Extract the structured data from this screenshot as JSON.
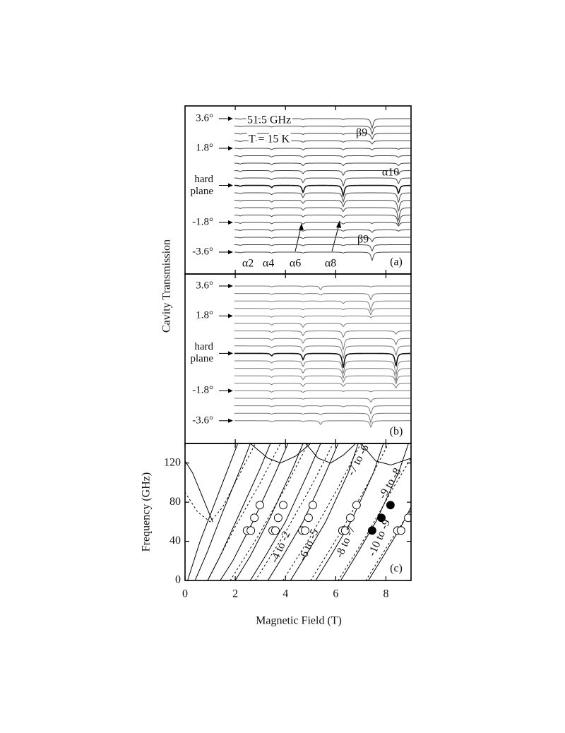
{
  "chart_data": [
    {
      "type": "spectra",
      "panel_label": "(a)",
      "ylabel": "Cavity Transmission",
      "xlim": [
        0,
        9
      ],
      "xticks": [
        2,
        4,
        6,
        8
      ],
      "angle_labels": [
        "3.6°",
        "1.8°",
        "hard plane",
        "-1.8°",
        "-3.6°"
      ],
      "annotations": [
        "51.5 GHz",
        "T = 15 K",
        "β9",
        "α10",
        "β9",
        "α2",
        "α4",
        "α6",
        "α8"
      ],
      "color": "#444",
      "dip_fields": [
        2.2,
        3.45,
        4.7,
        6.3,
        7.45,
        8.5
      ],
      "depths": [
        [
          0.2,
          0.3,
          0.3,
          0.3,
          3.0,
          0
        ],
        [
          0.2,
          0.3,
          0.3,
          0.3,
          2.5,
          0
        ],
        [
          0.2,
          0.3,
          0.3,
          0.3,
          1.8,
          0
        ],
        [
          0.2,
          0.3,
          0.4,
          0.4,
          1.0,
          0
        ],
        [
          0.2,
          0.4,
          0.5,
          0.5,
          0.5,
          0.3
        ],
        [
          0.3,
          0.4,
          0.6,
          0.6,
          0.3,
          0.5
        ],
        [
          0.3,
          0.5,
          0.8,
          0.8,
          0,
          0.8
        ],
        [
          0.3,
          0.5,
          1.0,
          1.5,
          0,
          1.2
        ],
        [
          0.3,
          0.6,
          1.5,
          2.5,
          0,
          1.8
        ],
        [
          0.3,
          0.7,
          2.2,
          3.2,
          0,
          2.5
        ],
        [
          0.3,
          0.6,
          1.5,
          2.8,
          0,
          3.0
        ],
        [
          0.3,
          0.6,
          1.0,
          2.0,
          0,
          3.5
        ],
        [
          0.3,
          0.5,
          0.8,
          1.2,
          0,
          4.0
        ],
        [
          0.3,
          0.5,
          0.6,
          0.8,
          0,
          3.0
        ],
        [
          0.3,
          0.4,
          0.5,
          0.5,
          0.3,
          1.2
        ],
        [
          0.2,
          0.4,
          0.4,
          0.4,
          0.8,
          0.4
        ],
        [
          0.2,
          0.3,
          0.4,
          0.3,
          1.4,
          0
        ],
        [
          0.2,
          0.3,
          0.3,
          0.3,
          2.0,
          0
        ],
        [
          0.2,
          0.3,
          0.3,
          0.3,
          2.6,
          0
        ]
      ]
    },
    {
      "type": "spectra",
      "panel_label": "(b)",
      "xlim": [
        0,
        9
      ],
      "xticks": [
        2,
        4,
        6,
        8
      ],
      "angle_labels": [
        "3.6°",
        "1.8°",
        "hard plane",
        "-1.8°",
        "-3.6°"
      ],
      "color": "#777",
      "dip_fields": [
        3.45,
        4.7,
        5.4,
        6.3,
        7.4,
        8.4
      ],
      "depths": [
        [
          0.3,
          0.3,
          1.2,
          0,
          0.3,
          0
        ],
        [
          0.3,
          0.3,
          0.5,
          0,
          2.0,
          0
        ],
        [
          0.3,
          0.3,
          0.2,
          0.8,
          3.0,
          0
        ],
        [
          0.4,
          0.4,
          0,
          0.4,
          2.0,
          0
        ],
        [
          0.4,
          0.5,
          0,
          0.2,
          0.5,
          0
        ],
        [
          0.5,
          1.2,
          0,
          1.0,
          0,
          0
        ],
        [
          0.5,
          1.5,
          0,
          2.0,
          0,
          1.0
        ],
        [
          0.6,
          1.5,
          0,
          3.5,
          0,
          2.0
        ],
        [
          0.7,
          1.8,
          0,
          4.0,
          0,
          3.0
        ],
        [
          0.8,
          2.0,
          0,
          4.5,
          0,
          4.0
        ],
        [
          0.7,
          1.8,
          0,
          4.0,
          0,
          4.5
        ],
        [
          0.6,
          1.5,
          0,
          3.0,
          0,
          4.0
        ],
        [
          0.5,
          1.2,
          0,
          2.0,
          0,
          2.5
        ],
        [
          0.4,
          1.0,
          0,
          1.0,
          0,
          1.5
        ],
        [
          0.4,
          0.5,
          0,
          0.2,
          0.3,
          0
        ],
        [
          0.3,
          0.3,
          0,
          0,
          1.2,
          0
        ],
        [
          0.3,
          0.3,
          0.2,
          0.3,
          2.5,
          0
        ],
        [
          0.3,
          0.3,
          0.5,
          0,
          3.0,
          0
        ],
        [
          0.3,
          0.3,
          1.2,
          0,
          2.0,
          0
        ]
      ]
    },
    {
      "type": "line",
      "panel_label": "(c)",
      "xlabel": "Magnetic Field (T)",
      "ylabel": "Frequency (GHz)",
      "xlim": [
        0,
        9
      ],
      "xticks": [
        0,
        2,
        4,
        6,
        8
      ],
      "ylim": [
        0,
        140
      ],
      "yticks": [
        0,
        40,
        80,
        120
      ],
      "annotations": [
        "-4 to -2",
        "-6 to -5",
        "-8 to -7",
        "-10 to -9",
        "-9 to -8",
        "-7 to -6"
      ],
      "color": "#000",
      "curves": [
        {
          "style": "solid",
          "x": [
            0.1,
            0.6,
            1.2,
            1.8,
            2.1
          ],
          "y": [
            0,
            40,
            80,
            120,
            140
          ]
        },
        {
          "style": "solid",
          "x": [
            0.4,
            0.9,
            1.5,
            2.3,
            2.6
          ],
          "y": [
            0,
            30,
            70,
            120,
            140
          ]
        },
        {
          "style": "solid",
          "x": [
            0.9,
            1.4,
            2.2,
            3.0,
            3.4
          ],
          "y": [
            0,
            25,
            70,
            115,
            140
          ]
        },
        {
          "style": "solid",
          "x": [
            1.4,
            1.9,
            2.7,
            3.6,
            4.1
          ],
          "y": [
            0,
            20,
            60,
            110,
            140
          ]
        },
        {
          "style": "solid",
          "x": [
            2.0,
            2.6,
            3.4,
            4.3,
            4.7
          ],
          "y": [
            0,
            25,
            65,
            115,
            140
          ]
        },
        {
          "style": "solid",
          "x": [
            2.6,
            3.2,
            4.0,
            4.9,
            5.4
          ],
          "y": [
            0,
            25,
            60,
            110,
            140
          ]
        },
        {
          "style": "solid",
          "x": [
            3.3,
            3.9,
            4.7,
            5.6,
            6.1
          ],
          "y": [
            0,
            25,
            60,
            110,
            140
          ]
        },
        {
          "style": "solid",
          "x": [
            4.2,
            4.8,
            5.6,
            6.5,
            6.9
          ],
          "y": [
            0,
            25,
            60,
            110,
            140
          ]
        },
        {
          "style": "solid",
          "x": [
            5.2,
            5.8,
            6.6,
            7.5,
            7.9
          ],
          "y": [
            0,
            25,
            60,
            110,
            140
          ]
        },
        {
          "style": "solid",
          "x": [
            6.2,
            6.8,
            7.6,
            8.5,
            8.9
          ],
          "y": [
            0,
            25,
            60,
            110,
            140
          ]
        },
        {
          "style": "solid",
          "x": [
            7.3,
            7.9,
            8.6,
            9.0
          ],
          "y": [
            0,
            25,
            55,
            75
          ]
        },
        {
          "style": "solid",
          "x": [
            0,
            0.3,
            0.7,
            1.1
          ],
          "y": [
            122,
            110,
            85,
            60
          ]
        },
        {
          "style": "solid",
          "x": [
            2.6,
            3.3,
            3.8,
            4.4,
            5.0
          ],
          "y": [
            140,
            125,
            120,
            127,
            140
          ]
        },
        {
          "style": "solid",
          "x": [
            4.8,
            5.3,
            5.8,
            6.3,
            6.8
          ],
          "y": [
            140,
            125,
            120,
            128,
            140
          ]
        },
        {
          "style": "solid",
          "x": [
            7.0,
            7.6,
            8.2,
            9.0
          ],
          "y": [
            140,
            122,
            118,
            125
          ]
        },
        {
          "style": "dashed",
          "x": [
            0.9,
            2.0,
            3.0,
            3.8
          ],
          "y": [
            0,
            55,
            100,
            140
          ]
        },
        {
          "style": "dashed",
          "x": [
            1.8,
            2.9,
            4.0,
            4.9
          ],
          "y": [
            0,
            45,
            95,
            140
          ]
        },
        {
          "style": "dashed",
          "x": [
            2.8,
            3.9,
            5.0,
            5.9
          ],
          "y": [
            0,
            45,
            95,
            140
          ]
        },
        {
          "style": "dashed",
          "x": [
            3.9,
            5.0,
            6.1,
            7.0
          ],
          "y": [
            0,
            45,
            95,
            140
          ]
        },
        {
          "style": "dashed",
          "x": [
            5.0,
            6.1,
            7.2,
            8.1
          ],
          "y": [
            0,
            45,
            95,
            140
          ]
        },
        {
          "style": "dashed",
          "x": [
            6.1,
            7.2,
            8.3,
            9.0
          ],
          "y": [
            0,
            45,
            95,
            125
          ]
        },
        {
          "style": "dashed",
          "x": [
            7.2,
            8.3,
            9.0
          ],
          "y": [
            0,
            45,
            72
          ]
        },
        {
          "style": "dashed",
          "x": [
            0,
            0.5,
            1.0,
            1.5,
            2.0,
            2.5,
            2.8
          ],
          "y": [
            90,
            70,
            60,
            75,
            100,
            125,
            140
          ]
        }
      ],
      "points": [
        {
          "fill": "#fff",
          "x": [
            2.47,
            2.62,
            2.76,
            2.98,
            3.49,
            3.6,
            3.71,
            3.91,
            4.67,
            4.78,
            4.92,
            5.09,
            6.27,
            6.38,
            6.58,
            6.83,
            8.46,
            8.6,
            8.89
          ],
          "y": [
            51,
            51,
            64,
            77,
            51,
            51,
            64,
            77,
            51,
            51,
            64,
            77,
            51,
            51,
            64,
            77,
            51,
            51,
            64
          ]
        },
        {
          "fill": "#000",
          "x": [
            7.45,
            7.82,
            8.18
          ],
          "y": [
            51,
            64,
            77
          ]
        }
      ]
    }
  ]
}
